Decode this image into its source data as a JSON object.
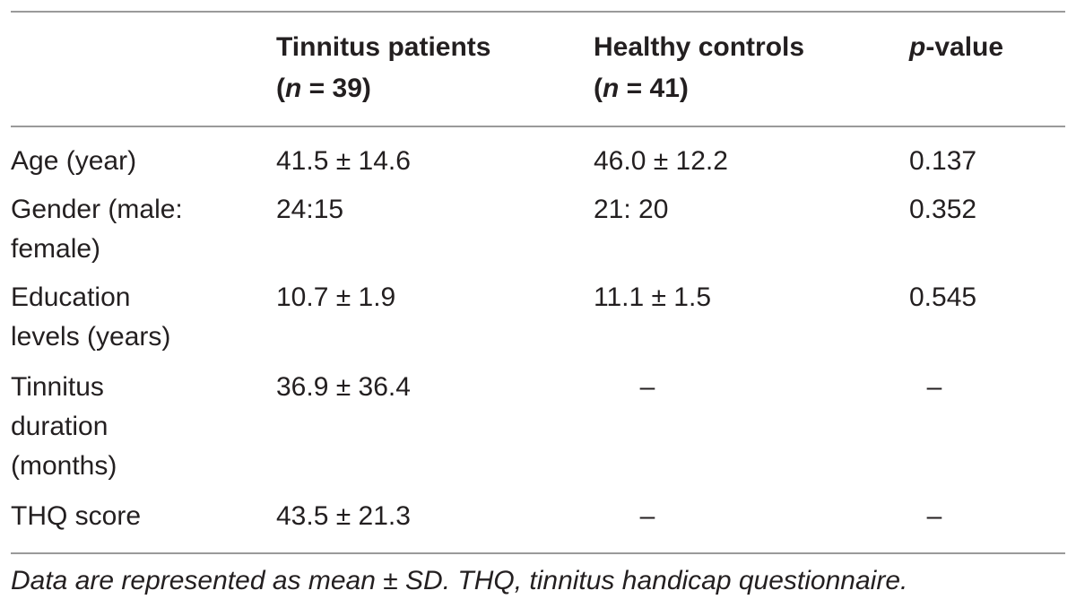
{
  "header": {
    "col1": "",
    "col2": "Tinnitus patients\n(n = 39)",
    "col3": "Healthy controls\n(n = 41)",
    "col4_italic": "p",
    "col4_rest": "-value"
  },
  "rows": [
    {
      "label": "Age (year)",
      "patients": "41.5 ± 14.6",
      "controls": "46.0 ± 12.2",
      "p": "0.137"
    },
    {
      "label": "Gender (male:\nfemale)",
      "patients": "24:15",
      "controls": "21: 20",
      "p": "0.352"
    },
    {
      "label": "Education\nlevels (years)",
      "patients": "10.7 ± 1.9",
      "controls": "11.1 ± 1.5",
      "p": "0.545"
    },
    {
      "label": "Tinnitus\nduration\n(months)",
      "patients": "36.9 ± 36.4",
      "controls": "–",
      "p": "–"
    },
    {
      "label": "THQ score",
      "patients": "43.5 ± 21.3",
      "controls": "–",
      "p": "–"
    }
  ],
  "footnote": "Data are represented as mean ± SD. THQ, tinnitus handicap questionnaire."
}
